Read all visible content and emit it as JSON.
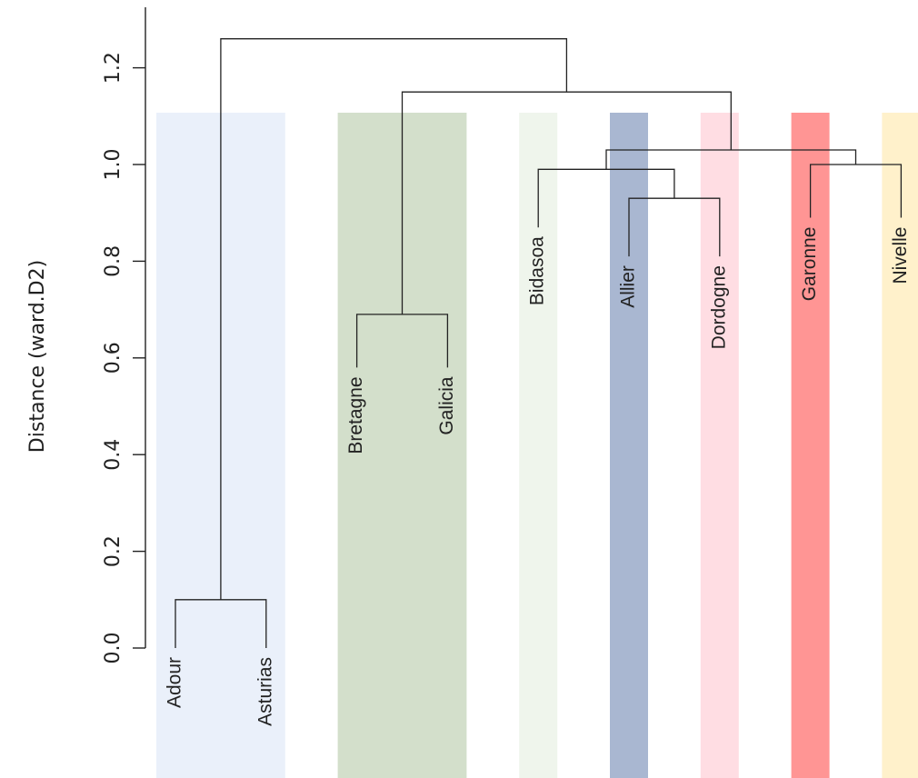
{
  "chart_data": {
    "type": "dendrogram",
    "title": "",
    "xlabel": "",
    "ylabel": "Distance (ward.D2)",
    "ylim": [
      0,
      1.3
    ],
    "y_ticks": [
      "0.0",
      "0.2",
      "0.4",
      "0.6",
      "0.8",
      "1.0",
      "1.2"
    ],
    "y_tick_values": [
      0,
      0.2,
      0.4,
      0.6,
      0.8,
      1.0,
      1.2
    ],
    "leaves": [
      {
        "label": "Adour",
        "height": 0,
        "group": 1
      },
      {
        "label": "Asturias",
        "height": 0,
        "group": 1
      },
      {
        "label": "Bretagne",
        "height": 0.58,
        "group": 2
      },
      {
        "label": "Galicia",
        "height": 0.58,
        "group": 2
      },
      {
        "label": "Bidasoa",
        "height": 0.87,
        "group": 3
      },
      {
        "label": "Allier",
        "height": 0.81,
        "group": 4
      },
      {
        "label": "Dordogne",
        "height": 0.81,
        "group": 5
      },
      {
        "label": "Garonne",
        "height": 0.89,
        "group": 6
      },
      {
        "label": "Nivelle",
        "height": 0.89,
        "group": 7
      }
    ],
    "merges": [
      {
        "id": "m1",
        "left": "Adour",
        "right": "Asturias",
        "height": 0.1
      },
      {
        "id": "m2",
        "left": "Bretagne",
        "right": "Galicia",
        "height": 0.69
      },
      {
        "id": "m3",
        "left": "Allier",
        "right": "Dordogne",
        "height": 0.93
      },
      {
        "id": "m4",
        "left": "Bidasoa",
        "right": "m3",
        "height": 0.99
      },
      {
        "id": "m5",
        "left": "Garonne",
        "right": "Nivelle",
        "height": 1.0
      },
      {
        "id": "m6",
        "left": "m4",
        "right": "m5",
        "height": 1.03
      },
      {
        "id": "m7",
        "left": "m2",
        "right": "m6",
        "height": 1.15
      },
      {
        "id": "m8",
        "left": "m1",
        "right": "m7",
        "height": 1.26
      }
    ],
    "group_colors": [
      {
        "group": 1,
        "color": "#eaf0fa",
        "leaves": [
          "Adour",
          "Asturias"
        ]
      },
      {
        "group": 2,
        "color": "#d3dfcb",
        "leaves": [
          "Bretagne",
          "Galicia"
        ]
      },
      {
        "group": 3,
        "color": "#eff5ec",
        "leaves": [
          "Bidasoa"
        ]
      },
      {
        "group": 4,
        "color": "#a9b7d1",
        "leaves": [
          "Allier"
        ]
      },
      {
        "group": 5,
        "color": "#ffdde3",
        "leaves": [
          "Dordogne"
        ]
      },
      {
        "group": 6,
        "color": "#ff9594",
        "leaves": [
          "Garonne"
        ]
      },
      {
        "group": 7,
        "color": "#fff1cb",
        "leaves": [
          "Nivelle"
        ]
      }
    ],
    "grid": false,
    "legend": "none"
  }
}
